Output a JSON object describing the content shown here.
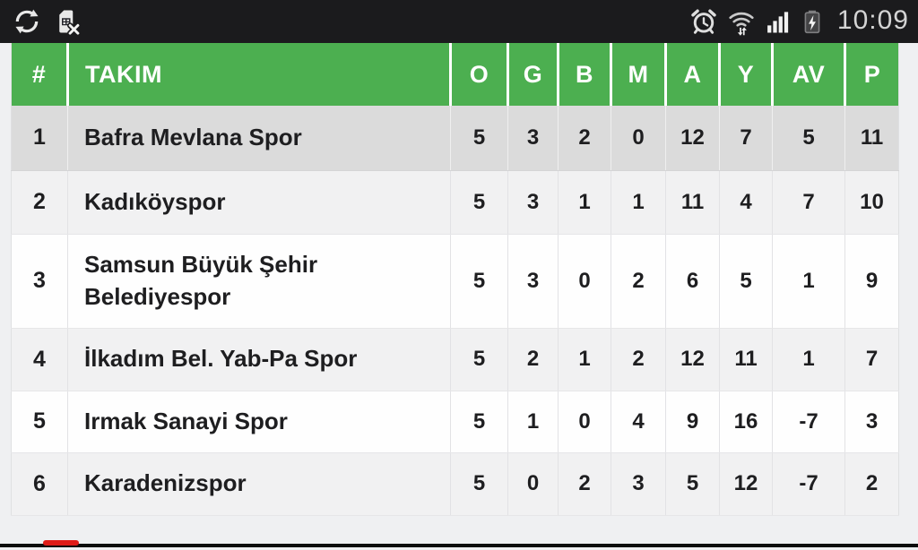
{
  "status_bar": {
    "time": "10:09",
    "icons": [
      "sync-icon",
      "no-sim-icon",
      "alarm-icon",
      "wifi-icon",
      "signal-strength-icon",
      "battery-charging-icon"
    ]
  },
  "standings": {
    "columns": [
      {
        "key": "rank",
        "label": "#"
      },
      {
        "key": "team",
        "label": "TAKIM"
      },
      {
        "key": "o",
        "label": "O"
      },
      {
        "key": "g",
        "label": "G"
      },
      {
        "key": "b",
        "label": "B"
      },
      {
        "key": "m",
        "label": "M"
      },
      {
        "key": "a",
        "label": "A"
      },
      {
        "key": "y",
        "label": "Y"
      },
      {
        "key": "av",
        "label": "AV"
      },
      {
        "key": "p",
        "label": "P"
      }
    ],
    "rows": [
      {
        "rank": "1",
        "team": "Bafra Mevlana Spor",
        "o": "5",
        "g": "3",
        "b": "2",
        "m": "0",
        "a": "12",
        "y": "7",
        "av": "5",
        "p": "11"
      },
      {
        "rank": "2",
        "team": "Kadıköyspor",
        "o": "5",
        "g": "3",
        "b": "1",
        "m": "1",
        "a": "11",
        "y": "4",
        "av": "7",
        "p": "10"
      },
      {
        "rank": "3",
        "team": "Samsun Büyük Şehir Belediyespor",
        "o": "5",
        "g": "3",
        "b": "0",
        "m": "2",
        "a": "6",
        "y": "5",
        "av": "1",
        "p": "9"
      },
      {
        "rank": "4",
        "team": "İlkadım Bel. Yab-Pa Spor",
        "o": "5",
        "g": "2",
        "b": "1",
        "m": "2",
        "a": "12",
        "y": "11",
        "av": "1",
        "p": "7"
      },
      {
        "rank": "5",
        "team": "Irmak Sanayi Spor",
        "o": "5",
        "g": "1",
        "b": "0",
        "m": "4",
        "a": "9",
        "y": "16",
        "av": "-7",
        "p": "3"
      },
      {
        "rank": "6",
        "team": "Karadenizspor",
        "o": "5",
        "g": "0",
        "b": "2",
        "m": "3",
        "a": "5",
        "y": "12",
        "av": "-7",
        "p": "2"
      }
    ]
  },
  "colors": {
    "header_green": "#4caf50",
    "highlight_row": "#dbdbdb",
    "stripe_row": "#f1f1f2",
    "status_bar_bg": "#1b1b1d",
    "progress_red": "#df1b17"
  }
}
